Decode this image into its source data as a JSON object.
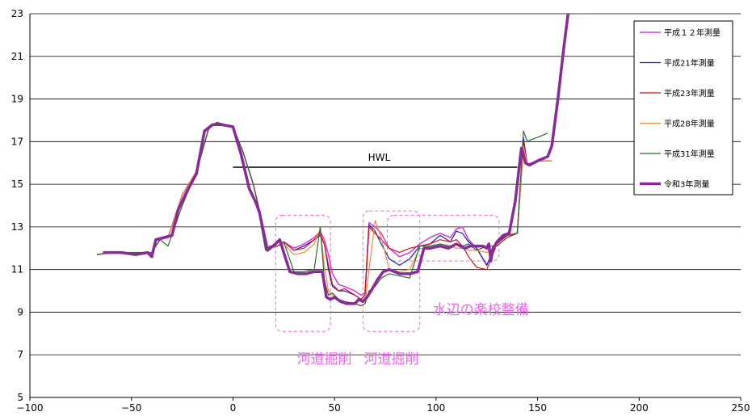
{
  "chart_data": {
    "type": "line",
    "title": "",
    "xlabel": "",
    "ylabel": "",
    "xlim": [
      -100,
      250
    ],
    "ylim": [
      5,
      23
    ],
    "x_ticks": [
      "−100",
      "−50",
      "0",
      "50",
      "100",
      "150",
      "200",
      "250"
    ],
    "y_ticks": [
      "5",
      "7",
      "9",
      "11",
      "13",
      "15",
      "17",
      "19",
      "21",
      "23"
    ],
    "grid": "horizontal",
    "legend_position": "top-right",
    "hwl": {
      "label": "HWL",
      "x": [
        0,
        140
      ],
      "y": 15.8
    },
    "annotations": [
      {
        "label": "河道掘削",
        "x": 45,
        "y": 6.6
      },
      {
        "label": "河道掘削",
        "x": 78,
        "y": 6.6
      },
      {
        "label": "水辺の楽校整備",
        "x": 122,
        "y": 8.9
      }
    ],
    "series": [
      {
        "name": "平成１２年測量",
        "color": "#dd33dd",
        "width": 1.5,
        "x": [
          -67,
          -60,
          -50,
          -40,
          -36,
          -32,
          -25,
          -18,
          -12,
          -8,
          0,
          5,
          10,
          13,
          14,
          16,
          18,
          22,
          25,
          30,
          35,
          40,
          43,
          45,
          47,
          49,
          52,
          55,
          60,
          63,
          65,
          67,
          70,
          73,
          77,
          82,
          87,
          92,
          97,
          102,
          107,
          110,
          113,
          116,
          120,
          125,
          130,
          135,
          140,
          143,
          145,
          147,
          150,
          157
        ],
        "y": [
          11.7,
          11.8,
          11.8,
          11.8,
          12.4,
          12.5,
          14.5,
          15.6,
          17.6,
          17.9,
          17.7,
          16.5,
          15.0,
          13.8,
          13.0,
          12.0,
          12.0,
          12.1,
          12.3,
          12.0,
          12.2,
          12.5,
          12.8,
          12.4,
          11.7,
          10.8,
          10.3,
          10.2,
          10.0,
          9.8,
          9.9,
          13.2,
          13.0,
          12.7,
          12.0,
          11.6,
          11.8,
          12.2,
          12.5,
          12.7,
          12.5,
          12.9,
          13.0,
          12.4,
          12.0,
          11.2,
          12.3,
          12.6,
          12.7,
          16.7,
          15.9,
          16.0,
          16.1,
          16.1
        ]
      },
      {
        "name": "平成21年測量",
        "color": "#1f1fbf",
        "width": 1.2,
        "x": [
          -67,
          -60,
          -50,
          -40,
          -36,
          -32,
          -25,
          -18,
          -12,
          -8,
          0,
          5,
          10,
          13,
          14,
          16,
          18,
          22,
          25,
          30,
          35,
          40,
          43,
          45,
          47,
          49,
          52,
          55,
          60,
          63,
          65,
          67,
          70,
          73,
          77,
          82,
          87,
          92,
          97,
          102,
          107,
          110,
          113,
          116,
          120,
          125,
          130,
          135,
          140,
          143,
          145,
          147,
          150,
          157
        ],
        "y": [
          11.7,
          11.8,
          11.8,
          11.8,
          12.4,
          12.5,
          14.5,
          15.6,
          17.6,
          17.9,
          17.7,
          16.5,
          15.0,
          13.8,
          13.0,
          12.0,
          12.0,
          12.1,
          12.3,
          11.9,
          12.1,
          12.4,
          12.6,
          12.2,
          11.0,
          10.2,
          10.0,
          10.0,
          9.8,
          9.6,
          9.8,
          13.1,
          12.8,
          12.2,
          11.5,
          11.2,
          11.5,
          12.1,
          12.2,
          12.6,
          12.3,
          12.8,
          12.7,
          12.3,
          12.0,
          11.2,
          12.3,
          12.6,
          12.7,
          17.2,
          15.9,
          16.0,
          16.1,
          16.1
        ]
      },
      {
        "name": "平成23年測量",
        "color": "#dd1111",
        "width": 1.2,
        "x": [
          -67,
          -60,
          -50,
          -40,
          -36,
          -32,
          -25,
          -18,
          -12,
          -8,
          0,
          5,
          10,
          13,
          14,
          16,
          18,
          22,
          25,
          30,
          35,
          40,
          43,
          45,
          47,
          49,
          52,
          55,
          60,
          63,
          65,
          67,
          70,
          73,
          77,
          82,
          87,
          92,
          97,
          102,
          107,
          110,
          113,
          116,
          120,
          125,
          130,
          135,
          140,
          143,
          145,
          147,
          150,
          157
        ],
        "y": [
          11.7,
          11.8,
          11.8,
          11.8,
          12.4,
          12.5,
          14.5,
          15.6,
          17.6,
          17.9,
          17.7,
          16.5,
          15.0,
          13.8,
          13.0,
          12.0,
          12.0,
          12.1,
          12.3,
          11.9,
          12.0,
          12.4,
          12.7,
          12.2,
          11.2,
          10.3,
          10.0,
          10.1,
          9.8,
          9.6,
          9.8,
          13.0,
          12.7,
          12.4,
          12.0,
          11.8,
          12.0,
          12.1,
          12.2,
          12.4,
          12.3,
          12.4,
          12.1,
          11.6,
          11.1,
          11.0,
          12.2,
          12.6,
          12.7,
          17.0,
          15.9,
          16.0,
          16.1,
          16.1
        ]
      },
      {
        "name": "平成28年測量",
        "color": "#f08c3c",
        "width": 1.2,
        "x": [
          -67,
          -60,
          -50,
          -40,
          -36,
          -32,
          -25,
          -18,
          -12,
          -8,
          0,
          5,
          10,
          13,
          14,
          16,
          18,
          22,
          25,
          30,
          35,
          40,
          43,
          45,
          47,
          49,
          52,
          55,
          60,
          63,
          65,
          67,
          70,
          73,
          77,
          82,
          87,
          92,
          97,
          102,
          107,
          110,
          113,
          116,
          120,
          125,
          130,
          135,
          140,
          143,
          145,
          147,
          150,
          157
        ],
        "y": [
          11.7,
          11.8,
          11.8,
          11.8,
          12.4,
          12.5,
          14.5,
          15.6,
          17.6,
          17.9,
          17.7,
          16.5,
          15.0,
          13.8,
          13.0,
          12.0,
          12.0,
          12.1,
          12.2,
          11.7,
          11.8,
          12.2,
          12.9,
          11.2,
          10.0,
          9.8,
          9.6,
          9.5,
          9.4,
          9.3,
          9.4,
          11.0,
          13.3,
          12.5,
          11.0,
          10.9,
          11.0,
          12.0,
          12.0,
          12.1,
          12.1,
          12.0,
          12.0,
          11.9,
          11.9,
          11.8,
          12.1,
          12.5,
          12.7,
          16.8,
          15.9,
          16.0,
          16.1,
          16.1
        ]
      },
      {
        "name": "平成31年測量",
        "color": "#2e6b2e",
        "width": 1.2,
        "x": [
          -67,
          -60,
          -50,
          -40,
          -36,
          -32,
          -25,
          -18,
          -12,
          -8,
          0,
          5,
          10,
          13,
          14,
          16,
          18,
          22,
          25,
          30,
          35,
          40,
          43,
          45,
          47,
          49,
          52,
          55,
          60,
          63,
          65,
          67,
          70,
          73,
          77,
          82,
          87,
          92,
          97,
          102,
          107,
          110,
          113,
          116,
          120,
          125,
          130,
          135,
          140,
          143,
          145,
          147,
          150,
          155
        ],
        "y": [
          11.7,
          11.8,
          11.8,
          11.8,
          12.4,
          12.1,
          14.0,
          15.6,
          17.6,
          17.9,
          17.7,
          16.5,
          15.0,
          13.8,
          13.0,
          11.9,
          12.1,
          12.1,
          12.3,
          10.9,
          10.9,
          11.0,
          13.0,
          10.5,
          9.8,
          9.9,
          9.6,
          9.5,
          9.4,
          9.3,
          9.4,
          10.0,
          10.2,
          10.6,
          10.8,
          10.7,
          10.6,
          12.1,
          12.1,
          12.2,
          12.1,
          12.2,
          12.1,
          12.2,
          11.9,
          12.1,
          12.1,
          12.5,
          12.7,
          17.5,
          17.0,
          17.1,
          17.2,
          17.4
        ]
      },
      {
        "name": "令和3年測量",
        "color": "#8a2a9a",
        "width": 3.5,
        "x": [
          -64,
          -55,
          -48,
          -42,
          -40,
          -38,
          -34,
          -30,
          -27,
          -23,
          -18,
          -14,
          -10,
          -6,
          0,
          4,
          8,
          11,
          13,
          15,
          17,
          21,
          23,
          25,
          28,
          32,
          36,
          40,
          44,
          46,
          48,
          50,
          53,
          56,
          60,
          62,
          64,
          66,
          68,
          71,
          74,
          77,
          82,
          87,
          91,
          94,
          97,
          102,
          106,
          110,
          114,
          117,
          120,
          123,
          125,
          126,
          127,
          128,
          130,
          133,
          136,
          139,
          142,
          144,
          146,
          150,
          155,
          157,
          160,
          163,
          165
        ],
        "y": [
          11.8,
          11.8,
          11.7,
          11.8,
          11.6,
          12.4,
          12.5,
          12.6,
          13.8,
          14.6,
          15.5,
          17.5,
          17.8,
          17.8,
          17.7,
          16.4,
          14.8,
          14.2,
          13.7,
          12.8,
          11.9,
          12.2,
          12.4,
          11.8,
          10.9,
          10.8,
          10.8,
          10.9,
          10.9,
          9.7,
          9.6,
          9.7,
          9.5,
          9.4,
          9.4,
          9.6,
          9.5,
          9.7,
          10.0,
          10.5,
          10.9,
          11.0,
          10.8,
          10.8,
          10.9,
          12.0,
          12.0,
          12.1,
          12.0,
          12.2,
          12.0,
          12.1,
          12.1,
          12.1,
          12.0,
          12.2,
          11.4,
          12.0,
          12.3,
          12.6,
          12.7,
          14.2,
          16.7,
          16.0,
          15.9,
          16.1,
          16.3,
          16.8,
          19.0,
          21.5,
          23.0
        ]
      }
    ]
  }
}
